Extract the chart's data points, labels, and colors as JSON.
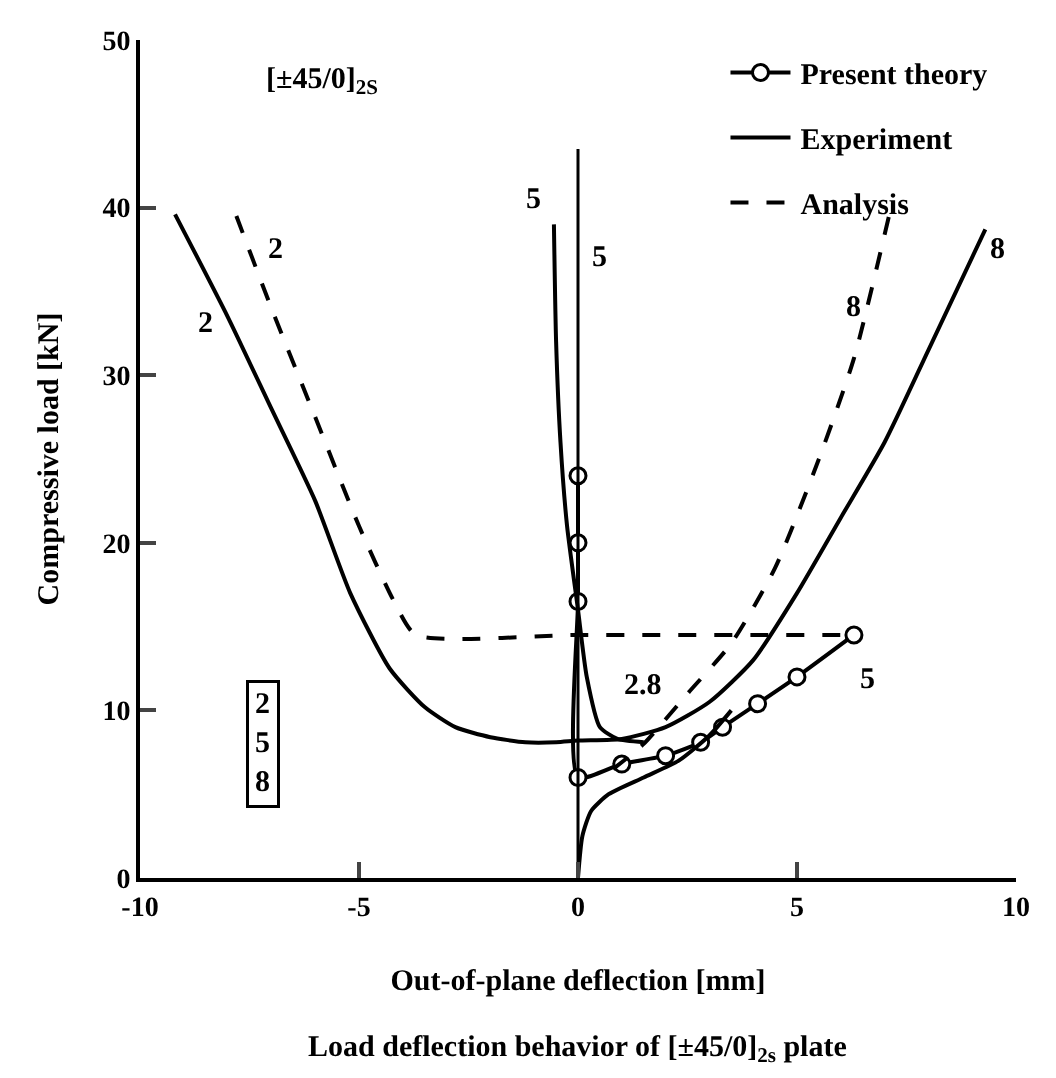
{
  "chart_data": {
    "type": "line",
    "xlabel": "Out-of-plane deflection [mm]",
    "ylabel": "Compressive load [kN]",
    "xlim": [
      -10,
      10
    ],
    "xticks": [
      -10,
      -5,
      0,
      5,
      10
    ],
    "ylim": [
      0,
      50
    ],
    "yticks": [
      0,
      10,
      20,
      30,
      40,
      50
    ],
    "grid": false,
    "legend": "top right",
    "series": [
      {
        "name": "Present theory",
        "color": "#000000",
        "marker": "circle",
        "line_style": "solid",
        "x": [
          0,
          0,
          0,
          0,
          1,
          2,
          2.8,
          3.3,
          4.1,
          5,
          6.3
        ],
        "values": [
          24,
          20,
          16.5,
          6,
          6.8,
          7.3,
          8.1,
          9,
          10.4,
          12,
          14.5
        ]
      },
      {
        "name": "Experiment",
        "color": "#000000",
        "marker": "none",
        "line_style": "solid",
        "x": [
          -9.2,
          -8,
          -7,
          -6,
          -5.2,
          -4.3,
          -3.5,
          -2.8,
          -2,
          -1.2,
          -0.5,
          0,
          1,
          2,
          3,
          4,
          5,
          6,
          7,
          8,
          9.3
        ],
        "values": [
          39.6,
          33.5,
          28,
          22.5,
          17,
          12.5,
          10.2,
          9,
          8.4,
          8.1,
          8.1,
          8.2,
          8.3,
          9,
          10.5,
          13,
          17,
          21.5,
          26,
          31.5,
          38.7
        ]
      },
      {
        "color": "#000000",
        "marker": "none",
        "line_style": "solid",
        "x": [
          -0.55,
          -0.5,
          -0.4,
          -0.25,
          0,
          0.2,
          0.5,
          0.9,
          1.5
        ],
        "values": [
          39,
          32,
          26,
          21,
          16,
          12,
          9,
          8.3,
          8.1
        ]
      },
      {
        "color": "#000000",
        "marker": "none",
        "line_style": "solid",
        "x": [
          0,
          0.1,
          0.3,
          0.7,
          1.5,
          2.3,
          3,
          3.5
        ],
        "values": [
          0,
          2.5,
          4,
          5,
          6,
          7,
          8.5,
          10
        ]
      },
      {
        "name": "Analysis",
        "color": "#000000",
        "marker": "none",
        "line_style": "dashed",
        "x": [
          -7.8,
          -7,
          -6,
          -5,
          -4.2,
          -3.7,
          0,
          6.3
        ],
        "values": [
          39.5,
          34,
          27.5,
          21,
          16.5,
          14.5,
          14.5,
          14.5
        ]
      },
      {
        "color": "#000000",
        "marker": "none",
        "line_style": "dashed",
        "x": [
          0.8,
          1.5,
          2.5,
          3.5,
          4.5,
          5.5,
          6.3,
          7.1
        ],
        "values": [
          6.5,
          8,
          11,
          14,
          18.5,
          25,
          31,
          39.5
        ]
      },
      {
        "color": "#000000",
        "marker": "none",
        "line_style": "solid",
        "x": [
          0,
          0,
          0,
          0
        ],
        "values": [
          0,
          10,
          30,
          43.5
        ]
      }
    ],
    "annotations": [
      "[±45/0]$_{2S}$",
      "2\n5\n8",
      "Load deflection behavior of [±45/0]$_{2s}$ plate",
      "2",
      "2",
      "5",
      "5",
      "8",
      "8",
      "2.8",
      "5"
    ]
  }
}
